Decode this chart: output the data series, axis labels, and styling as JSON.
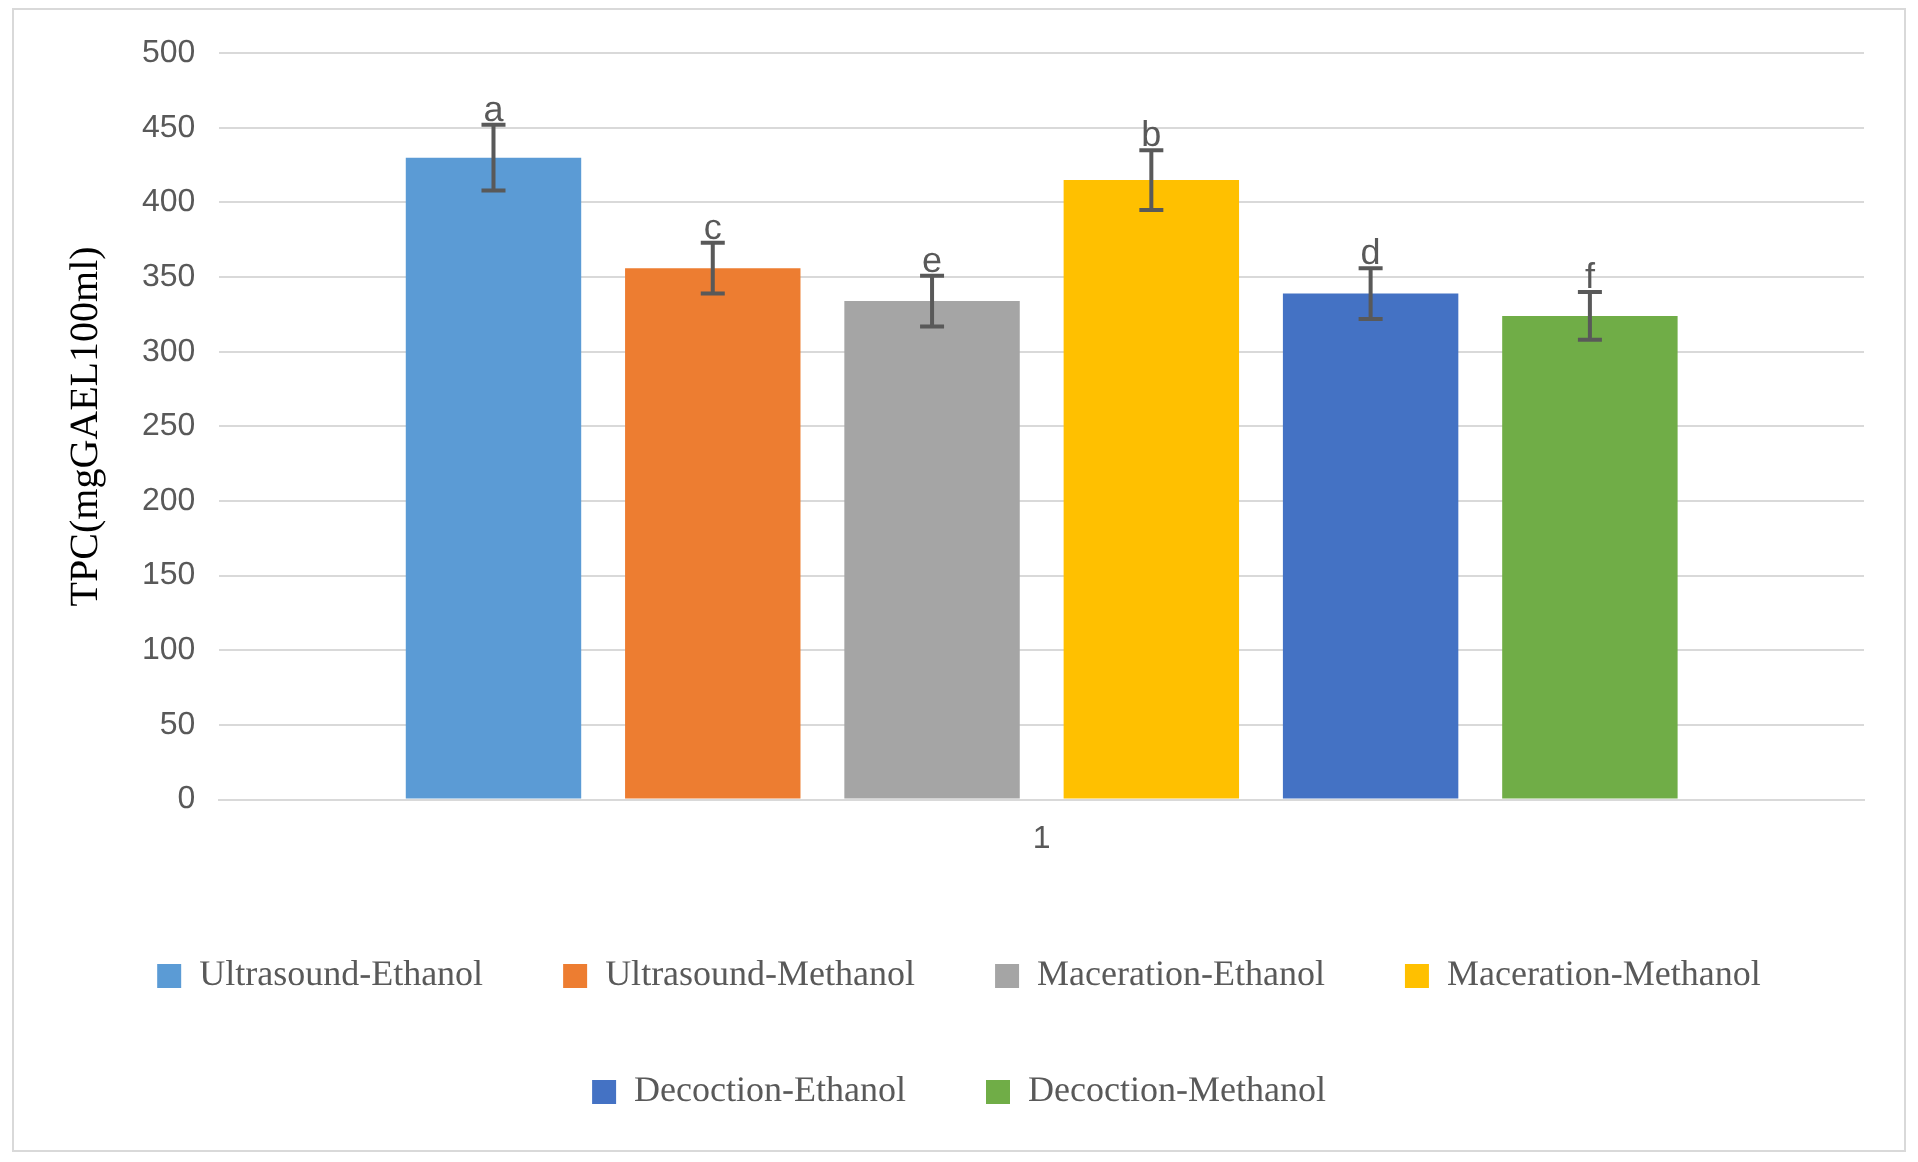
{
  "chart_data": {
    "type": "bar",
    "categories": [
      "1"
    ],
    "ylabel": "TPC(mgGAEL100ml)",
    "ylim": [
      0,
      500
    ],
    "yticks": [
      0,
      50,
      100,
      150,
      200,
      250,
      300,
      350,
      400,
      450,
      500
    ],
    "grid": "y",
    "legend": "bottom",
    "series": [
      {
        "name": "Ultrasound-Ethanol",
        "color": "#5b9bd5",
        "values": [
          430
        ],
        "errors": [
          22
        ],
        "value_labels": [
          "a"
        ]
      },
      {
        "name": "Ultrasound-Methanol",
        "color": "#ed7d31",
        "values": [
          356
        ],
        "errors": [
          17
        ],
        "value_labels": [
          "c"
        ]
      },
      {
        "name": "Maceration-Ethanol",
        "color": "#a5a5a5",
        "values": [
          334
        ],
        "errors": [
          17
        ],
        "value_labels": [
          "e"
        ]
      },
      {
        "name": "Maceration-Methanol",
        "color": "#ffc000",
        "values": [
          415
        ],
        "errors": [
          20
        ],
        "value_labels": [
          "b"
        ]
      },
      {
        "name": "Decoction-Ethanol",
        "color": "#4472c4",
        "values": [
          339
        ],
        "errors": [
          17
        ],
        "value_labels": [
          "d"
        ]
      },
      {
        "name": "Decoction-Methanol",
        "color": "#70ad47",
        "values": [
          324
        ],
        "errors": [
          16
        ],
        "value_labels": [
          "f"
        ]
      }
    ]
  }
}
